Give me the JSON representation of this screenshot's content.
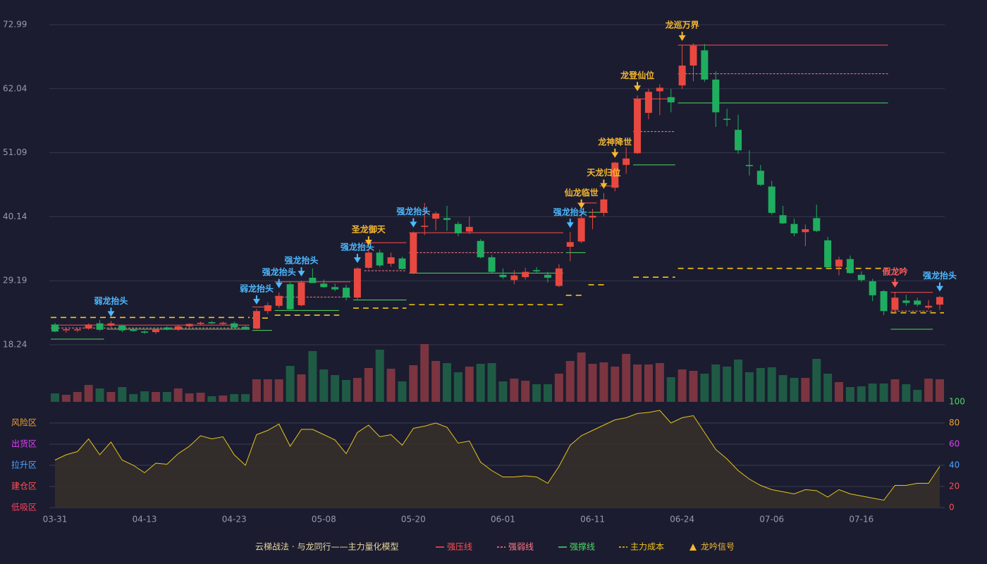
{
  "chart_data": {
    "type": "candlestick",
    "categories": [
      "03-31",
      null,
      null,
      null,
      null,
      null,
      null,
      null,
      "04-13",
      null,
      null,
      null,
      null,
      null,
      null,
      null,
      "04-23",
      null,
      null,
      null,
      null,
      null,
      null,
      null,
      "05-08",
      null,
      null,
      null,
      null,
      null,
      null,
      null,
      "05-20",
      null,
      null,
      null,
      null,
      null,
      null,
      null,
      "06-01",
      null,
      null,
      null,
      null,
      null,
      null,
      null,
      "06-11",
      null,
      null,
      null,
      null,
      null,
      null,
      null,
      "06-24",
      null,
      null,
      null,
      null,
      null,
      null,
      null,
      "07-06",
      null,
      null,
      null,
      null,
      null,
      null,
      null,
      "07-16",
      null,
      null,
      null,
      null,
      null,
      null,
      null
    ],
    "open": [
      21.7,
      20.7,
      20.7,
      21.0,
      21.9,
      21.5,
      21.5,
      20.8,
      20.5,
      20.4,
      21.2,
      20.9,
      21.4,
      21.8,
      22.1,
      21.8,
      21.9,
      21.3,
      21.0,
      24.0,
      24.9,
      28.6,
      25.0,
      29.7,
      28.7,
      28.1,
      28.0,
      26.3,
      31.4,
      34.0,
      32.1,
      33.0,
      30.5,
      38.4,
      39.8,
      39.9,
      38.9,
      37.6,
      36.0,
      33.2,
      30.2,
      29.3,
      29.8,
      31.0,
      30.2,
      28.3,
      35.0,
      35.9,
      40.0,
      40.8,
      45.1,
      49.0,
      51.0,
      57.9,
      61.6,
      60.6,
      62.6,
      66.0,
      68.6,
      63.6,
      56.9,
      55.0,
      49.0,
      48.0,
      45.3,
      40.4,
      38.9,
      37.5,
      39.9,
      36.1,
      31.6,
      32.9,
      30.2,
      29.1,
      27.4,
      24.2,
      25.8,
      25.8,
      24.6,
      25.1
    ],
    "high": [
      22.0,
      21.0,
      21.1,
      21.9,
      22.5,
      22.3,
      21.7,
      21.0,
      20.7,
      21.0,
      21.4,
      21.6,
      21.9,
      22.2,
      22.3,
      22.2,
      22.2,
      21.5,
      24.4,
      25.5,
      27.2,
      29.0,
      29.2,
      31.3,
      29.4,
      28.7,
      28.5,
      31.5,
      34.5,
      34.5,
      34.0,
      33.3,
      37.6,
      42.5,
      41.0,
      42.0,
      39.3,
      40.2,
      36.3,
      33.6,
      31.3,
      31.0,
      31.4,
      31.5,
      30.7,
      32.0,
      37.5,
      40.8,
      41.5,
      44.2,
      49.5,
      52.0,
      60.9,
      62.0,
      62.8,
      62.0,
      69.5,
      69.8,
      69.7,
      65.0,
      58.6,
      57.6,
      51.5,
      49.0,
      46.3,
      42.0,
      39.8,
      38.8,
      42.2,
      36.7,
      33.3,
      33.5,
      30.8,
      29.5,
      27.6,
      27.3,
      26.8,
      26.3,
      25.9,
      26.6
    ],
    "low": [
      20.4,
      20.3,
      20.4,
      20.8,
      20.6,
      21.2,
      20.4,
      20.5,
      20.1,
      20.1,
      20.7,
      20.6,
      21.2,
      21.6,
      21.8,
      21.6,
      21.1,
      20.9,
      20.9,
      23.5,
      24.5,
      24.1,
      24.8,
      28.8,
      28.0,
      27.4,
      25.8,
      26.0,
      31.2,
      31.5,
      31.6,
      31.1,
      30.3,
      37.0,
      37.8,
      37.7,
      36.8,
      37.2,
      33.0,
      30.5,
      29.5,
      28.6,
      29.4,
      30.6,
      28.9,
      28.1,
      32.5,
      35.6,
      38.0,
      40.2,
      44.5,
      47.5,
      50.9,
      56.8,
      57.5,
      58.0,
      62.0,
      63.3,
      63.2,
      55.5,
      55.6,
      50.9,
      47.2,
      45.4,
      40.5,
      38.9,
      36.8,
      35.1,
      37.5,
      31.3,
      30.1,
      30.4,
      29.0,
      25.7,
      23.3,
      23.7,
      24.9,
      24.8,
      24.3,
      24.2
    ],
    "close": [
      20.5,
      20.9,
      20.9,
      21.7,
      20.8,
      21.9,
      20.7,
      20.6,
      20.3,
      20.8,
      20.9,
      21.4,
      21.8,
      22.0,
      21.9,
      22.0,
      21.2,
      21.0,
      24.0,
      25.0,
      26.6,
      24.3,
      28.9,
      28.8,
      28.1,
      27.7,
      26.3,
      31.3,
      34.0,
      31.8,
      33.2,
      31.2,
      37.4,
      38.6,
      40.7,
      39.6,
      37.3,
      38.4,
      33.2,
      30.7,
      29.8,
      30.1,
      30.7,
      30.8,
      29.7,
      31.3,
      35.8,
      39.9,
      40.3,
      43.1,
      49.4,
      50.1,
      60.3,
      61.5,
      62.2,
      59.7,
      66.0,
      69.4,
      63.6,
      58.0,
      56.7,
      51.5,
      48.8,
      45.6,
      40.8,
      39.0,
      37.3,
      38.0,
      37.7,
      31.5,
      32.8,
      30.5,
      29.3,
      26.7,
      24.0,
      26.3,
      25.4,
      25.1,
      24.9,
      26.4
    ],
    "volume": [
      12,
      10,
      14,
      24,
      19,
      14,
      21,
      11,
      15,
      14,
      14,
      19,
      12,
      13,
      8,
      9,
      11,
      11,
      32,
      32,
      32,
      51,
      39,
      72,
      46,
      38,
      31,
      34,
      48,
      74,
      47,
      29,
      52,
      82,
      58,
      55,
      42,
      50,
      54,
      55,
      29,
      33,
      30,
      25,
      25,
      40,
      58,
      70,
      54,
      56,
      50,
      68,
      53,
      53,
      55,
      35,
      46,
      44,
      40,
      53,
      50,
      60,
      42,
      48,
      49,
      38,
      34,
      34,
      61,
      40,
      28,
      21,
      22,
      26,
      26,
      32,
      25,
      17,
      33,
      32
    ],
    "ylim": [
      18.24,
      72.99
    ],
    "yticks": [
      18.24,
      29.19,
      40.14,
      51.09,
      62.04,
      72.99
    ],
    "grid": true,
    "colors": {
      "up": "#e8483f",
      "down": "#1fae5f"
    },
    "volume_colors": {
      "up": "#7a3540",
      "down": "#1f5a45"
    },
    "legend": {
      "title": "云梯战法 · 与龙同行——主力量化模型",
      "items": [
        {
          "name": "强压线",
          "color": "#ff4d4f",
          "dash": false,
          "segments": [
            {
              "start": 0,
              "end": 17,
              "value": 21.6
            },
            {
              "start": 18,
              "end": 19,
              "value": 24.7
            },
            {
              "start": 20,
              "end": 26,
              "value": 29.0
            },
            {
              "start": 28,
              "end": 31,
              "value": 35.7
            },
            {
              "start": 32,
              "end": 45,
              "value": 37.4
            },
            {
              "start": 47,
              "end": 48,
              "value": 42.5
            },
            {
              "start": 49,
              "end": 50,
              "value": 45.4
            },
            {
              "start": 52,
              "end": 55,
              "value": 60.3
            },
            {
              "start": 56,
              "end": 74,
              "value": 69.5
            },
            {
              "start": 75,
              "end": 78,
              "value": 27.2
            }
          ]
        },
        {
          "name": "强弱线",
          "color": "#ff7a8a",
          "dash": true,
          "segments": [
            {
              "start": 0,
              "end": 17,
              "value": 21.1
            },
            {
              "start": 20,
              "end": 26,
              "value": 26.4
            },
            {
              "start": 28,
              "end": 31,
              "value": 30.9
            },
            {
              "start": 32,
              "end": 45,
              "value": 34.0
            },
            {
              "start": 52,
              "end": 55,
              "value": 54.7
            },
            {
              "start": 56,
              "end": 74,
              "value": 64.6
            },
            {
              "start": 75,
              "end": 78,
              "value": 24.0
            }
          ]
        },
        {
          "name": "强撑线",
          "color": "#4cd964",
          "dash": false,
          "segments": [
            {
              "start": 0,
              "end": 4,
              "value": 19.2
            },
            {
              "start": 5,
              "end": 17,
              "value": 20.9
            },
            {
              "start": 18,
              "end": 19,
              "value": 20.7
            },
            {
              "start": 20,
              "end": 25,
              "value": 24.1
            },
            {
              "start": 27,
              "end": 31,
              "value": 25.9
            },
            {
              "start": 32,
              "end": 45,
              "value": 30.5
            },
            {
              "start": 46,
              "end": 47,
              "value": 34.0
            },
            {
              "start": 48,
              "end": 49,
              "value": 40.9
            },
            {
              "start": 52,
              "end": 55,
              "value": 49.0
            },
            {
              "start": 56,
              "end": 74,
              "value": 59.6
            },
            {
              "start": 75,
              "end": 78,
              "value": 20.9
            }
          ]
        },
        {
          "name": "主力成本",
          "color": "#f5c518",
          "dash": true,
          "segments": [
            {
              "start": 0,
              "end": 17,
              "value": 22.9
            },
            {
              "start": 18,
              "end": 19,
              "value": 22.8
            },
            {
              "start": 20,
              "end": 25,
              "value": 23.3
            },
            {
              "start": 27,
              "end": 31,
              "value": 24.5
            },
            {
              "start": 32,
              "end": 45,
              "value": 25.1
            },
            {
              "start": 46,
              "end": 47,
              "value": 26.7
            },
            {
              "start": 48,
              "end": 49,
              "value": 28.5
            },
            {
              "start": 52,
              "end": 55,
              "value": 29.8
            },
            {
              "start": 56,
              "end": 74,
              "value": 31.3
            },
            {
              "start": 75,
              "end": 79,
              "value": 23.7
            }
          ]
        },
        {
          "name": "龙吟信号",
          "color": "#f5b82e",
          "marker": "triangle"
        }
      ]
    },
    "signals": [
      {
        "text": "弱龙抬头",
        "index": 5,
        "color": "#4db8ff"
      },
      {
        "text": "弱龙抬头",
        "index": 18,
        "color": "#4db8ff"
      },
      {
        "text": "强龙抬头",
        "index": 20,
        "color": "#4db8ff"
      },
      {
        "text": "强龙抬头",
        "index": 22,
        "color": "#4db8ff"
      },
      {
        "text": "强龙抬头",
        "index": 27,
        "color": "#4db8ff"
      },
      {
        "text": "圣龙御天",
        "index": 28,
        "color": "#f5b82e"
      },
      {
        "text": "强龙抬头",
        "index": 32,
        "color": "#4db8ff"
      },
      {
        "text": "强龙抬头",
        "index": 46,
        "color": "#4db8ff"
      },
      {
        "text": "仙龙临世",
        "index": 47,
        "color": "#f5b82e"
      },
      {
        "text": "天龙归位",
        "index": 49,
        "color": "#f5b82e"
      },
      {
        "text": "龙神降世",
        "index": 50,
        "color": "#f5b82e"
      },
      {
        "text": "龙登仙位",
        "index": 52,
        "color": "#f5b82e"
      },
      {
        "text": "龙巡万界",
        "index": 56,
        "color": "#f5b82e"
      },
      {
        "text": "假龙吟",
        "index": 75,
        "color": "#ff5a5a"
      },
      {
        "text": "强龙抬头",
        "index": 79,
        "color": "#4db8ff"
      }
    ],
    "indicator": {
      "values": [
        45,
        50,
        53,
        65,
        50,
        62,
        45,
        40,
        33,
        42,
        41,
        51,
        58,
        68,
        65,
        67,
        50,
        40,
        69,
        73,
        79,
        58,
        74,
        74,
        69,
        64,
        51,
        71,
        78,
        67,
        69,
        59,
        75,
        77,
        80,
        76,
        61,
        63,
        43,
        35,
        29,
        29,
        30,
        29,
        23,
        39,
        59,
        68,
        73,
        78,
        83,
        85,
        89,
        90,
        92,
        80,
        85,
        87,
        71,
        55,
        46,
        35,
        27,
        21,
        17,
        15,
        13,
        17,
        16,
        10,
        17,
        13,
        11,
        9,
        7,
        21,
        21,
        23,
        23,
        39
      ],
      "color": "#e6c21f",
      "fill": "#35302a",
      "ylim": [
        0,
        100
      ],
      "yticks": [
        0,
        20,
        40,
        60,
        80,
        100
      ],
      "tick_colors": [
        "#ff4d4f",
        "#ff4d4f",
        "#4da3ff",
        "#e040fb",
        "#f0a030",
        "#4cd964"
      ],
      "zones": [
        {
          "label": "风险区",
          "value": 80,
          "color": "#f0a030"
        },
        {
          "label": "出货区",
          "value": 60,
          "color": "#e040fb"
        },
        {
          "label": "拉升区",
          "value": 40,
          "color": "#4da3ff"
        },
        {
          "label": "建仓区",
          "value": 20,
          "color": "#ff5050"
        },
        {
          "label": "低吸区",
          "value": 0,
          "color": "#ff4060"
        }
      ]
    }
  }
}
